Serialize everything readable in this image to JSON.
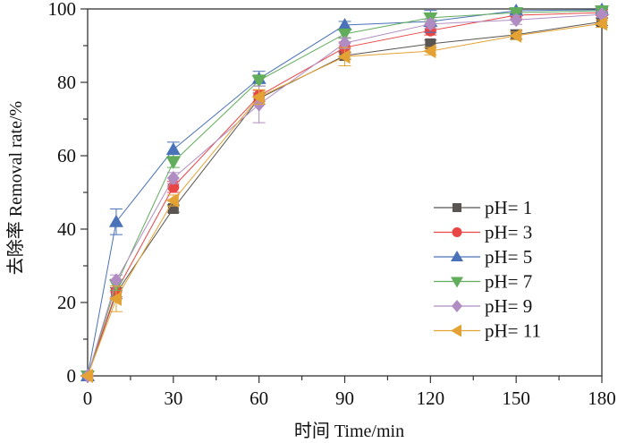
{
  "chart_data": {
    "type": "line",
    "title": "",
    "xlabel": "时间 Time/min",
    "ylabel": "去除率 Removal rate/%",
    "xlim": [
      0,
      180
    ],
    "ylim": [
      0,
      100
    ],
    "xticks": [
      0,
      30,
      60,
      90,
      120,
      150,
      180
    ],
    "yticks": [
      0,
      20,
      40,
      60,
      80,
      100
    ],
    "grid": false,
    "legend_position": "center-right",
    "x": [
      0,
      10,
      30,
      60,
      90,
      120,
      150,
      180
    ],
    "series": [
      {
        "name": "pH=1",
        "marker": "square",
        "color": "#5a5552",
        "values": [
          0,
          22.5,
          45.6,
          75.6,
          87.3,
          90.5,
          93.0,
          96.5
        ],
        "errors": [
          0,
          1.5,
          1.0,
          1.5,
          1.0,
          1.0,
          1.2,
          1.0
        ]
      },
      {
        "name": "pH=3",
        "marker": "circle",
        "color": "#e84545",
        "values": [
          0,
          23.0,
          51.5,
          76.3,
          89.5,
          94.1,
          98.3,
          99.0
        ],
        "errors": [
          0,
          1.5,
          1.5,
          1.5,
          1.5,
          1.2,
          1.0,
          0.8
        ]
      },
      {
        "name": "pH=5",
        "marker": "triangle-up",
        "color": "#4a72b8",
        "values": [
          0,
          42.0,
          61.7,
          81.0,
          95.6,
          96.6,
          99.5,
          99.8
        ],
        "errors": [
          0,
          3.5,
          2.0,
          2.0,
          1.0,
          3.0,
          0.8,
          0.5
        ]
      },
      {
        "name": "pH=7",
        "marker": "triangle-down",
        "color": "#62ad5c",
        "values": [
          0,
          24.8,
          58.3,
          80.5,
          93.2,
          97.6,
          99.0,
          99.5
        ],
        "errors": [
          0,
          1.5,
          1.5,
          1.5,
          1.2,
          1.0,
          0.8,
          0.5
        ]
      },
      {
        "name": "pH=9",
        "marker": "diamond",
        "color": "#b08cc2",
        "values": [
          0,
          26.0,
          53.9,
          74.0,
          90.7,
          95.9,
          97.0,
          98.5
        ],
        "errors": [
          0,
          1.5,
          1.5,
          5.0,
          1.5,
          1.2,
          1.2,
          0.8
        ]
      },
      {
        "name": "pH=11",
        "marker": "triangle-left",
        "color": "#e3a233",
        "values": [
          0,
          21.0,
          47.8,
          76.0,
          87.0,
          88.5,
          92.7,
          96.0
        ],
        "errors": [
          0,
          3.5,
          1.5,
          2.0,
          2.5,
          1.0,
          1.0,
          1.0
        ]
      }
    ]
  }
}
